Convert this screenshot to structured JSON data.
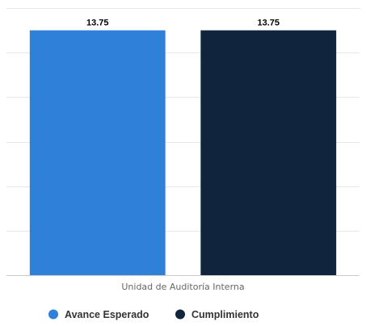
{
  "chart_data": {
    "type": "bar",
    "title": "",
    "xlabel": "",
    "ylabel": "",
    "categories": [
      "Unidad de Auditoría Interna"
    ],
    "series": [
      {
        "name": "Avance Esperado",
        "color": "#2f80d8",
        "values": [
          13.75
        ]
      },
      {
        "name": "Cumplimiento",
        "color": "#10253d",
        "values": [
          13.75
        ]
      }
    ],
    "ylim": [
      0,
      15
    ],
    "grid": true,
    "legend_position": "bottom-center",
    "data_labels": [
      "13.75",
      "13.75"
    ]
  }
}
